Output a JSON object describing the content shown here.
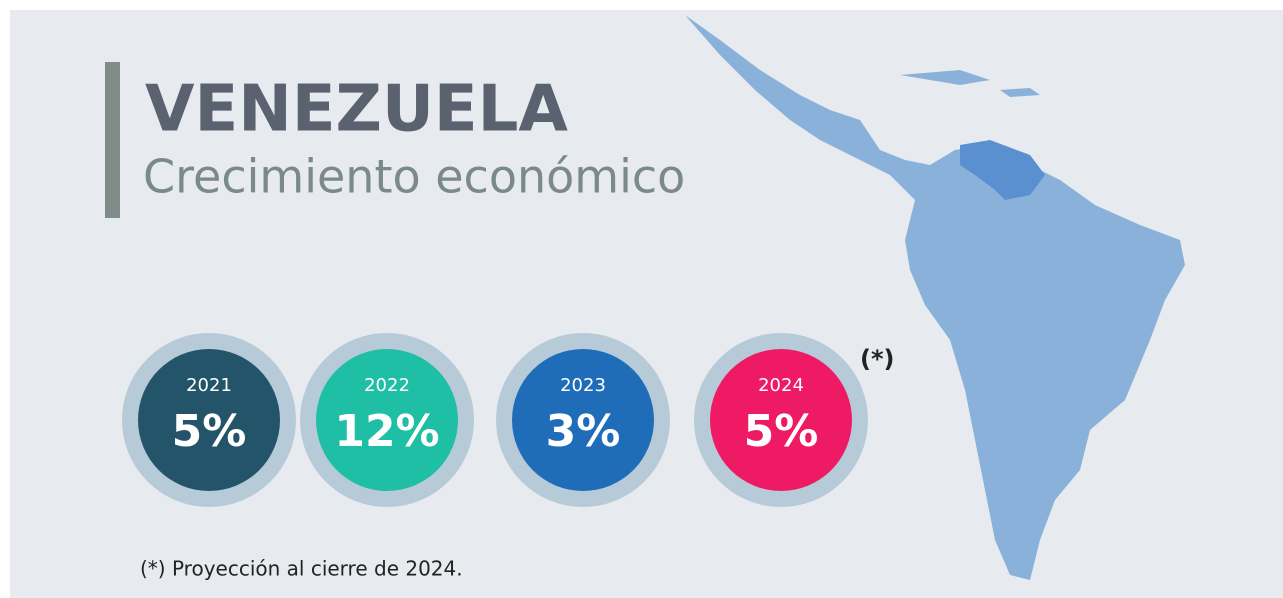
{
  "header": {
    "title": "VENEZUELA",
    "subtitle": "Crecimiento económico"
  },
  "items": [
    {
      "year": "2021",
      "value": "5%",
      "color": "#245469"
    },
    {
      "year": "2022",
      "value": "12%",
      "color": "#1fbfa6"
    },
    {
      "year": "2023",
      "value": "3%",
      "color": "#1f6cb9"
    },
    {
      "year": "2024",
      "value": "5%",
      "color": "#ee1a64"
    }
  ],
  "marker": "(*)",
  "footnote": "(*) Proyección al cierre de 2024."
}
